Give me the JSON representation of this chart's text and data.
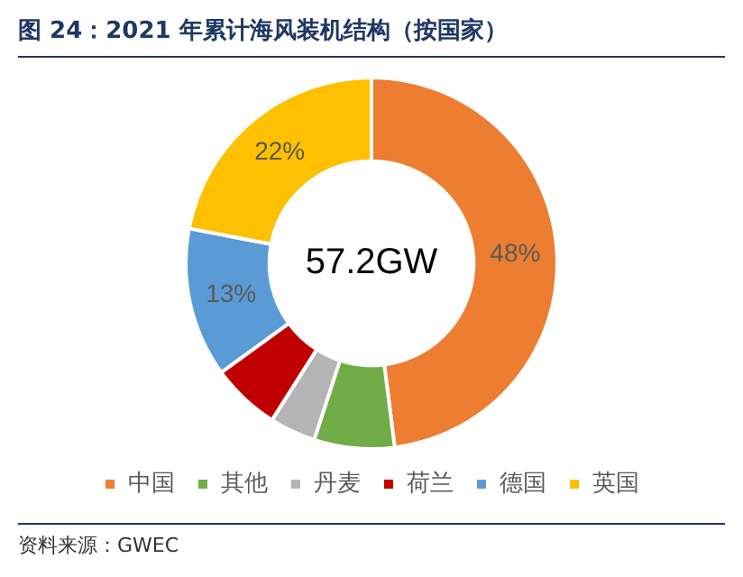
{
  "chart_data": {
    "type": "donut",
    "title": "图 24：2021 年累计海风装机结构（按国家）",
    "categories": [
      "中国",
      "其他",
      "丹麦",
      "荷兰",
      "德国",
      "英国"
    ],
    "values": [
      48,
      7,
      4,
      6,
      13,
      22
    ],
    "value_labels": [
      "48%",
      null,
      null,
      null,
      "13%",
      "22%"
    ],
    "colors": [
      "#ed7d31",
      "#70ad47",
      "#b4b4b4",
      "#c00000",
      "#5b9bd5",
      "#ffc000"
    ],
    "legend": "bottom",
    "annotations": [
      "57.2GW",
      "资料来源：GWEC"
    ]
  }
}
